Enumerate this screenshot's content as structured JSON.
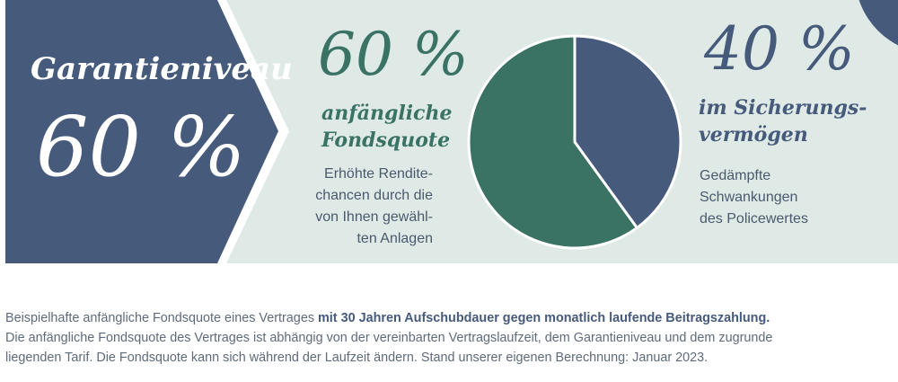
{
  "colors": {
    "navy": "#465a7c",
    "green": "#3a7364",
    "mint_bg": "#dfe9e6",
    "white": "#ffffff"
  },
  "guarantee": {
    "label": "Garantieniveau",
    "value": "60 %"
  },
  "fund": {
    "percent": "60 %",
    "script_line1": "anfängliche",
    "script_line2": "Fondsquote",
    "desc_lines": [
      "Erhöhte Rendite-",
      "chancen durch die",
      "von Ihnen gewähl-",
      "ten Anlagen"
    ]
  },
  "security": {
    "percent": "40 %",
    "script_line1": "im Sicherungs-",
    "script_line2": "vermögen",
    "desc_lines": [
      "Gedämpfte",
      "Schwankungen",
      "des Policewertes"
    ]
  },
  "chart_data": {
    "type": "pie",
    "slices": [
      {
        "label": "Sicherungsvermögen",
        "value": 40,
        "color": "#465a7c"
      },
      {
        "label": "Fondsquote",
        "value": 60,
        "color": "#3a7364"
      }
    ]
  },
  "footnote": {
    "part1": "Beispielhafte anfängliche Fondsquote eines Vertrages ",
    "bold": "mit 30 Jahren Aufschubdauer gegen monatlich laufende Beitragszahlung.",
    "line2": "Die anfängliche Fondsquote des Vertrages ist abhängig von der vereinbarten Vertragslaufzeit, dem Garantieniveau und dem zugrunde",
    "line3": "liegenden Tarif. Die Fondsquote kann sich während der Laufzeit ändern. Stand unserer eigenen Berechnung: Januar 2023."
  }
}
